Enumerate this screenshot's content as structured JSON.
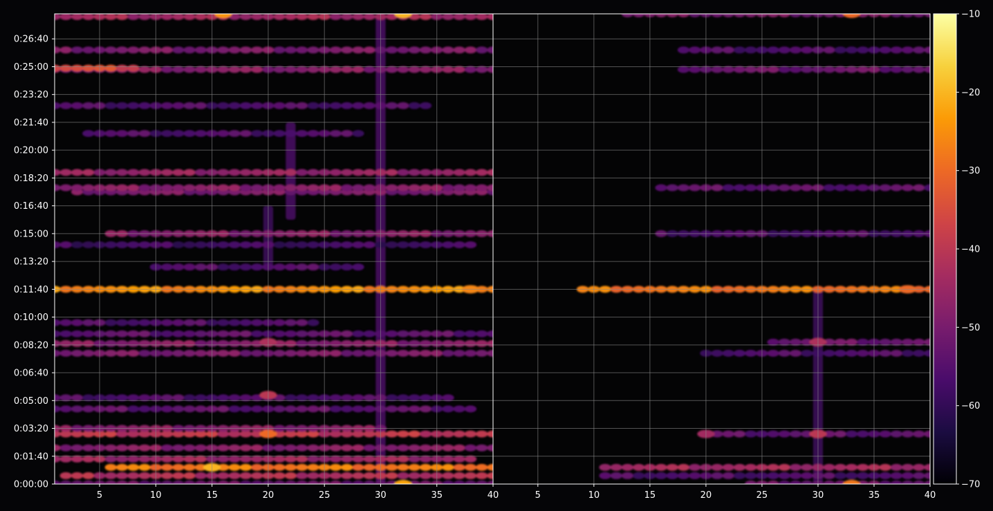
{
  "chart_data": [
    {
      "type": "heatmap",
      "title": "",
      "xlabel": "",
      "ylabel": "",
      "xlim": [
        1,
        40
      ],
      "ylim_seconds": [
        0,
        1690
      ],
      "x_ticks": [
        "5",
        "10",
        "15",
        "20",
        "25",
        "30",
        "35",
        "40"
      ],
      "y_ticks": [
        "0:00:00",
        "0:01:40",
        "0:03:20",
        "0:05:00",
        "0:06:40",
        "0:08:20",
        "0:10:00",
        "0:11:40",
        "0:13:20",
        "0:15:00",
        "0:16:40",
        "0:18:20",
        "0:20:00",
        "0:21:40",
        "0:23:20",
        "0:25:00",
        "0:26:40"
      ],
      "grid": true,
      "bands": [
        {
          "t_s": 0,
          "x_from": 1,
          "x_to": 40,
          "level": -52
        },
        {
          "t_s": 30,
          "x_from": 2,
          "x_to": 40,
          "level": -42
        },
        {
          "t_s": 60,
          "x_from": 6,
          "x_to": 40,
          "level": -28
        },
        {
          "t_s": 90,
          "x_from": 1,
          "x_to": 38,
          "level": -45
        },
        {
          "t_s": 130,
          "x_from": 1,
          "x_to": 40,
          "level": -48
        },
        {
          "t_s": 180,
          "x_from": 1,
          "x_to": 40,
          "level": -40
        },
        {
          "t_s": 200,
          "x_from": 1,
          "x_to": 30,
          "level": -48
        },
        {
          "t_s": 270,
          "x_from": 1,
          "x_to": 38,
          "level": -54
        },
        {
          "t_s": 310,
          "x_from": 1,
          "x_to": 36,
          "level": -56
        },
        {
          "t_s": 470,
          "x_from": 1,
          "x_to": 40,
          "level": -50
        },
        {
          "t_s": 505,
          "x_from": 1,
          "x_to": 40,
          "level": -48
        },
        {
          "t_s": 540,
          "x_from": 1,
          "x_to": 40,
          "level": -54
        },
        {
          "t_s": 580,
          "x_from": 1,
          "x_to": 24,
          "level": -56
        },
        {
          "t_s": 700,
          "x_from": 1,
          "x_to": 40,
          "level": -25
        },
        {
          "t_s": 780,
          "x_from": 10,
          "x_to": 28,
          "level": -56
        },
        {
          "t_s": 860,
          "x_from": 1,
          "x_to": 38,
          "level": -58
        },
        {
          "t_s": 900,
          "x_from": 6,
          "x_to": 40,
          "level": -48
        },
        {
          "t_s": 1050,
          "x_from": 3,
          "x_to": 40,
          "level": -50
        },
        {
          "t_s": 1065,
          "x_from": 1,
          "x_to": 40,
          "level": -48
        },
        {
          "t_s": 1120,
          "x_from": 1,
          "x_to": 40,
          "level": -46
        },
        {
          "t_s": 1260,
          "x_from": 4,
          "x_to": 28,
          "level": -56
        },
        {
          "t_s": 1360,
          "x_from": 1,
          "x_to": 34,
          "level": -56
        },
        {
          "t_s": 1490,
          "x_from": 1,
          "x_to": 40,
          "level": -48
        },
        {
          "t_s": 1495,
          "x_from": 1,
          "x_to": 8,
          "level": -36
        },
        {
          "t_s": 1560,
          "x_from": 1,
          "x_to": 40,
          "level": -50
        },
        {
          "t_s": 1680,
          "x_from": 1,
          "x_to": 40,
          "level": -44
        }
      ],
      "hotspots": [
        {
          "t_s": 0,
          "x": 32,
          "level": -22
        },
        {
          "t_s": 60,
          "x": 15,
          "level": -20
        },
        {
          "t_s": 180,
          "x": 20,
          "level": -30
        },
        {
          "t_s": 320,
          "x": 20,
          "level": -40
        },
        {
          "t_s": 510,
          "x": 20,
          "level": -42
        },
        {
          "t_s": 700,
          "x": 38,
          "level": -26
        },
        {
          "t_s": 1690,
          "x": 16,
          "level": -24
        },
        {
          "t_s": 1690,
          "x": 32,
          "level": -20
        }
      ],
      "columns": [
        {
          "x": 30,
          "t_from_s": 0,
          "t_to_s": 1690,
          "level": -56
        },
        {
          "x": 20,
          "t_from_s": 780,
          "t_to_s": 1000,
          "level": -58
        },
        {
          "x": 22,
          "t_from_s": 950,
          "t_to_s": 1300,
          "level": -56
        }
      ]
    },
    {
      "type": "heatmap",
      "title": "",
      "xlabel": "",
      "ylabel": "",
      "xlim": [
        1,
        40
      ],
      "ylim_seconds": [
        0,
        1690
      ],
      "x_ticks": [
        "5",
        "10",
        "15",
        "20",
        "25",
        "30",
        "35",
        "40"
      ],
      "grid": true,
      "bands": [
        {
          "t_s": 0,
          "x_from": 24,
          "x_to": 40,
          "level": -52
        },
        {
          "t_s": 30,
          "x_from": 11,
          "x_to": 40,
          "level": -56
        },
        {
          "t_s": 60,
          "x_from": 11,
          "x_to": 40,
          "level": -44
        },
        {
          "t_s": 180,
          "x_from": 20,
          "x_to": 40,
          "level": -54
        },
        {
          "t_s": 470,
          "x_from": 20,
          "x_to": 40,
          "level": -56
        },
        {
          "t_s": 510,
          "x_from": 26,
          "x_to": 40,
          "level": -52
        },
        {
          "t_s": 700,
          "x_from": 9,
          "x_to": 40,
          "level": -28
        },
        {
          "t_s": 900,
          "x_from": 16,
          "x_to": 40,
          "level": -56
        },
        {
          "t_s": 1065,
          "x_from": 16,
          "x_to": 40,
          "level": -54
        },
        {
          "t_s": 1490,
          "x_from": 18,
          "x_to": 40,
          "level": -52
        },
        {
          "t_s": 1560,
          "x_from": 18,
          "x_to": 40,
          "level": -56
        },
        {
          "t_s": 1690,
          "x_from": 13,
          "x_to": 40,
          "level": -50
        }
      ],
      "hotspots": [
        {
          "t_s": 0,
          "x": 33,
          "level": -28
        },
        {
          "t_s": 180,
          "x": 20,
          "level": -44
        },
        {
          "t_s": 180,
          "x": 30,
          "level": -40
        },
        {
          "t_s": 510,
          "x": 30,
          "level": -42
        },
        {
          "t_s": 700,
          "x": 38,
          "level": -30
        },
        {
          "t_s": 1690,
          "x": 33,
          "level": -30
        }
      ],
      "columns": [
        {
          "x": 30,
          "t_from_s": 0,
          "t_to_s": 700,
          "level": -58
        }
      ]
    }
  ],
  "colorbar": {
    "min": -70,
    "max": -10,
    "ticks": [
      "−10",
      "−20",
      "−30",
      "−40",
      "−50",
      "−60",
      "−70"
    ],
    "colormap": "inferno",
    "stops": [
      "#000004",
      "#1b0c41",
      "#4a0c6b",
      "#781c6d",
      "#a52c60",
      "#cf4446",
      "#ed6925",
      "#fb9b06",
      "#f7d13d",
      "#fcffa4"
    ]
  },
  "colors": {
    "background": "#050507",
    "panel": "#040405",
    "grid": "#8a8a8a",
    "text": "#ffffff"
  }
}
